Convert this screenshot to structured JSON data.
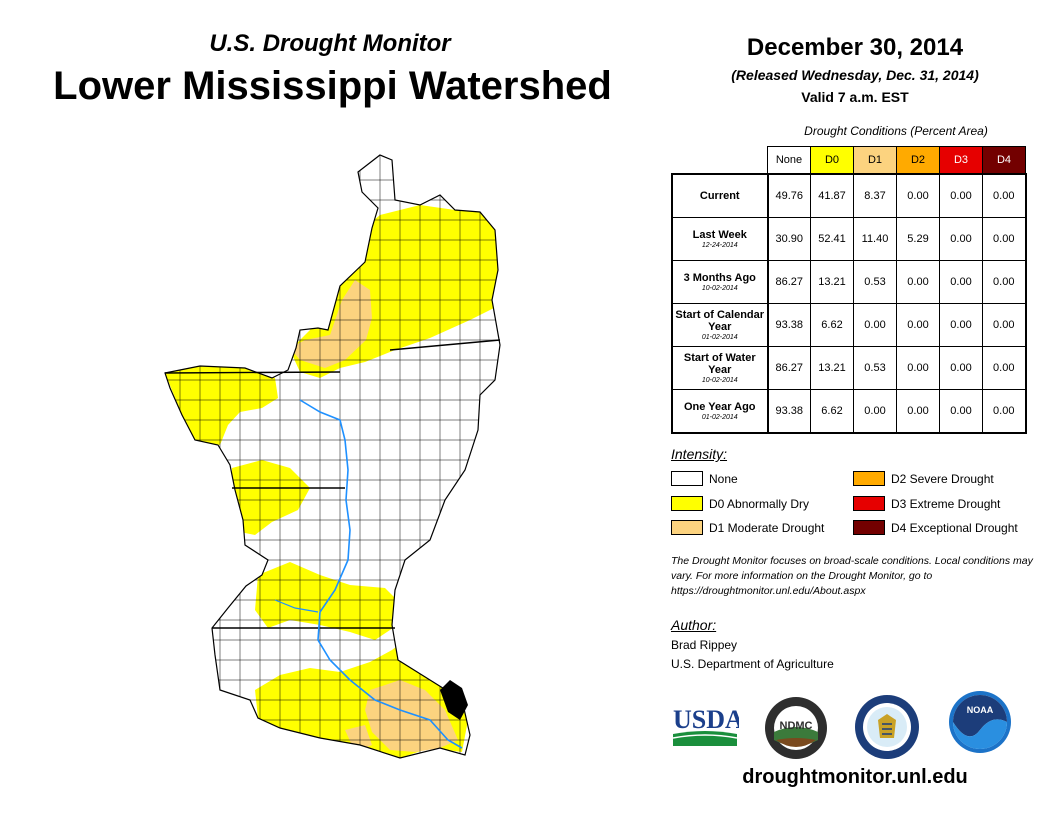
{
  "header": {
    "subtitle": "U.S. Drought Monitor",
    "title": "Lower Mississippi Watershed",
    "date": "December 30, 2014",
    "released": "(Released Wednesday, Dec. 31, 2014)",
    "valid": "Valid 7 a.m. EST"
  },
  "table": {
    "caption": "Drought Conditions (Percent Area)",
    "columns": [
      "None",
      "D0",
      "D1",
      "D2",
      "D3",
      "D4"
    ],
    "column_colors": [
      "#ffffff",
      "#ffff00",
      "#fcd37f",
      "#ffaa00",
      "#e60000",
      "#730000"
    ],
    "rows": [
      {
        "label": "Current",
        "date": "",
        "values": [
          "49.76",
          "41.87",
          "8.37",
          "0.00",
          "0.00",
          "0.00"
        ]
      },
      {
        "label": "Last Week",
        "date": "12-24-2014",
        "values": [
          "30.90",
          "52.41",
          "11.40",
          "5.29",
          "0.00",
          "0.00"
        ]
      },
      {
        "label": "3 Months Ago",
        "date": "10-02-2014",
        "values": [
          "86.27",
          "13.21",
          "0.53",
          "0.00",
          "0.00",
          "0.00"
        ]
      },
      {
        "label": "Start of Calendar Year",
        "date": "01-02-2014",
        "values": [
          "93.38",
          "6.62",
          "0.00",
          "0.00",
          "0.00",
          "0.00"
        ]
      },
      {
        "label": "Start of Water Year",
        "date": "10-02-2014",
        "values": [
          "86.27",
          "13.21",
          "0.53",
          "0.00",
          "0.00",
          "0.00"
        ]
      },
      {
        "label": "One Year Ago",
        "date": "01-02-2014",
        "values": [
          "93.38",
          "6.62",
          "0.00",
          "0.00",
          "0.00",
          "0.00"
        ]
      }
    ]
  },
  "legend": {
    "title": "Intensity:",
    "items": [
      {
        "label": "None",
        "color": "#ffffff"
      },
      {
        "label": "D0 Abnormally Dry",
        "color": "#ffff00"
      },
      {
        "label": "D1 Moderate Drought",
        "color": "#fcd37f"
      },
      {
        "label": "D2 Severe Drought",
        "color": "#ffaa00"
      },
      {
        "label": "D3 Extreme Drought",
        "color": "#e60000"
      },
      {
        "label": "D4 Exceptional Drought",
        "color": "#730000"
      }
    ]
  },
  "note": "The Drought Monitor focuses on broad-scale conditions. Local conditions may vary. For more information on the Drought Monitor, go to https://droughtmonitor.unl.edu/About.aspx",
  "author": {
    "title": "Author:",
    "name": "Brad Rippey",
    "org": "U.S. Department of Agriculture"
  },
  "logos": {
    "usda": "USDA",
    "ndmc": "NDMC",
    "noaa": "NOAA"
  },
  "website": "droughtmonitor.unl.edu"
}
